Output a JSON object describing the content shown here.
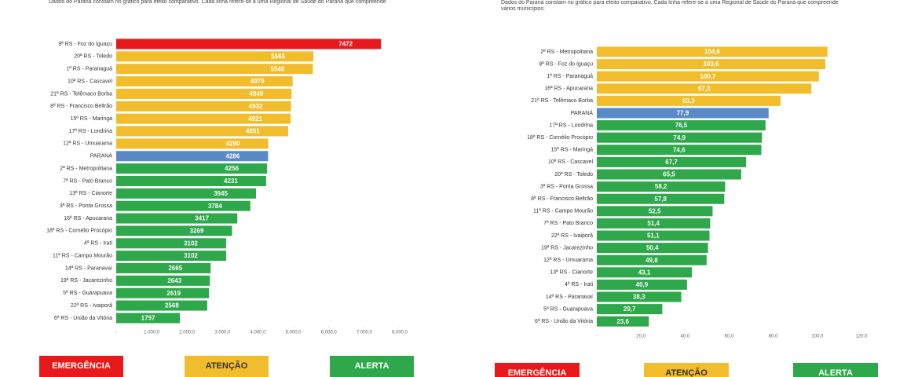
{
  "chart_data": [
    {
      "type": "bar",
      "orientation": "horizontal",
      "subtitle": "Dados do Paraná constam no gráfico para efeito comparativo. Cada linha refere-se a uma Regional de Saúde do Paraná que compreende",
      "categories": [
        "9ª RS - Foz do Iguaçu",
        "20ª RS - Toledo",
        "1ª RS - Paranaguá",
        "10ª RS - Cascavel",
        "21ª RS - Telêmaco Borba",
        "8ª RS - Francisco Beltrão",
        "15ª RS - Maringá",
        "17ª RS - Londrina",
        "12ª RS - Umuarama",
        "PARANÁ",
        "2ª RS - Metropolitana",
        "7ª RS - Pato Branco",
        "13ª RS - Cianorte",
        "3ª RS - Ponta Grossa",
        "16ª RS - Apucarana",
        "18ª RS - Cornélio Procópio",
        "4ª RS - Irati",
        "11ª RS - Campo Mourão",
        "14ª RS - Paranavaí",
        "19ª RS - Jacarezinho",
        "5ª RS - Guarapuava",
        "22ª RS - Ivaiporã",
        "6ª RS - União da Vitória"
      ],
      "values": [
        7472,
        5565,
        5548,
        4979,
        4949,
        4932,
        4921,
        4851,
        4290,
        4286,
        4256,
        4231,
        3945,
        3784,
        3417,
        3269,
        3102,
        3102,
        2665,
        2643,
        2619,
        2568,
        1797
      ],
      "colors": [
        "#e8191a",
        "#f2bd2c",
        "#f2bd2c",
        "#f2bd2c",
        "#f2bd2c",
        "#f2bd2c",
        "#f2bd2c",
        "#f2bd2c",
        "#f2bd2c",
        "#5a8ac6",
        "#2ea84a",
        "#2ea84a",
        "#2ea84a",
        "#2ea84a",
        "#2ea84a",
        "#2ea84a",
        "#2ea84a",
        "#2ea84a",
        "#2ea84a",
        "#2ea84a",
        "#2ea84a",
        "#2ea84a",
        "#2ea84a"
      ],
      "xlim": [
        0,
        8000
      ],
      "xticks": [
        {
          "value": 0,
          "label": "-"
        },
        {
          "value": 1000,
          "label": "1.000,0"
        },
        {
          "value": 2000,
          "label": "2.000,0"
        },
        {
          "value": 3000,
          "label": "3.000,0"
        },
        {
          "value": 4000,
          "label": "4.000,0"
        },
        {
          "value": 5000,
          "label": "5.000,0"
        },
        {
          "value": 6000,
          "label": "6.000,0"
        },
        {
          "value": 7000,
          "label": "7.000,0"
        },
        {
          "value": 8000,
          "label": "8.000,0"
        }
      ],
      "legend": [
        {
          "label": "EMERGÊNCIA",
          "color": "#e8191a"
        },
        {
          "label": "ATENÇÃO",
          "color": "#f2bd2c"
        },
        {
          "label": "ALERTA",
          "color": "#2ea84a"
        }
      ]
    },
    {
      "type": "bar",
      "orientation": "horizontal",
      "subtitle": [
        "Dados do Paraná constam no gráfico para efeito comparativo. Cada linha refere-se a uma Regional de Saúde do Paraná que compreende",
        "vários municípios."
      ],
      "categories": [
        "2ª RS - Metropolitana",
        "9ª RS - Foz do Iguaçu",
        "1ª RS - Paranaguá",
        "16ª RS - Apucarana",
        "21ª RS - Telêmaco Borba",
        "PARANÁ",
        "17ª RS - Londrina",
        "18ª RS - Cornélio Procópio",
        "15ª RS - Maringá",
        "10ª RS - Cascavel",
        "20ª RS - Toledo",
        "3ª RS - Ponta Grossa",
        "8ª RS - Francisco Beltrão",
        "11ª RS - Campo Mourão",
        "7ª RS - Pato Branco",
        "22ª RS - Ivaiporã",
        "19ª RS - Jacarezinho",
        "12ª RS - Umuarama",
        "13ª RS - Cianorte",
        "4ª RS - Irati",
        "14ª RS - Paranavaí",
        "5ª RS - Guarapuava",
        "6ª RS - União da Vitória"
      ],
      "values": [
        104.6,
        103.6,
        100.7,
        97.3,
        83.3,
        77.9,
        76.5,
        74.9,
        74.6,
        67.7,
        65.5,
        58.2,
        57.8,
        52.5,
        51.4,
        51.1,
        50.4,
        49.8,
        43.1,
        40.9,
        38.3,
        29.7,
        23.6
      ],
      "value_labels": [
        "104,6",
        "103,6",
        "100,7",
        "97,3",
        "83,3",
        "77,9",
        "76,5",
        "74,9",
        "74,6",
        "67,7",
        "65,5",
        "58,2",
        "57,8",
        "52,5",
        "51,4",
        "51,1",
        "50,4",
        "49,8",
        "43,1",
        "40,9",
        "38,3",
        "29,7",
        "23,6"
      ],
      "colors": [
        "#f2bd2c",
        "#f2bd2c",
        "#f2bd2c",
        "#f2bd2c",
        "#f2bd2c",
        "#5a8ac6",
        "#2ea84a",
        "#2ea84a",
        "#2ea84a",
        "#2ea84a",
        "#2ea84a",
        "#2ea84a",
        "#2ea84a",
        "#2ea84a",
        "#2ea84a",
        "#2ea84a",
        "#2ea84a",
        "#2ea84a",
        "#2ea84a",
        "#2ea84a",
        "#2ea84a",
        "#2ea84a",
        "#2ea84a"
      ],
      "xlim": [
        0,
        120
      ],
      "xticks": [
        {
          "value": 0,
          "label": "-"
        },
        {
          "value": 20,
          "label": "20,0"
        },
        {
          "value": 40,
          "label": "40,0"
        },
        {
          "value": 60,
          "label": "60,0"
        },
        {
          "value": 80,
          "label": "80,0"
        },
        {
          "value": 100,
          "label": "100,0"
        },
        {
          "value": 120,
          "label": "120,0"
        }
      ],
      "legend": [
        {
          "label": "EMERGÊNCIA",
          "color": "#e8191a"
        },
        {
          "label": "ATENÇÃO",
          "color": "#f2bd2c"
        },
        {
          "label": "ALERTA",
          "color": "#2ea84a"
        }
      ]
    }
  ]
}
